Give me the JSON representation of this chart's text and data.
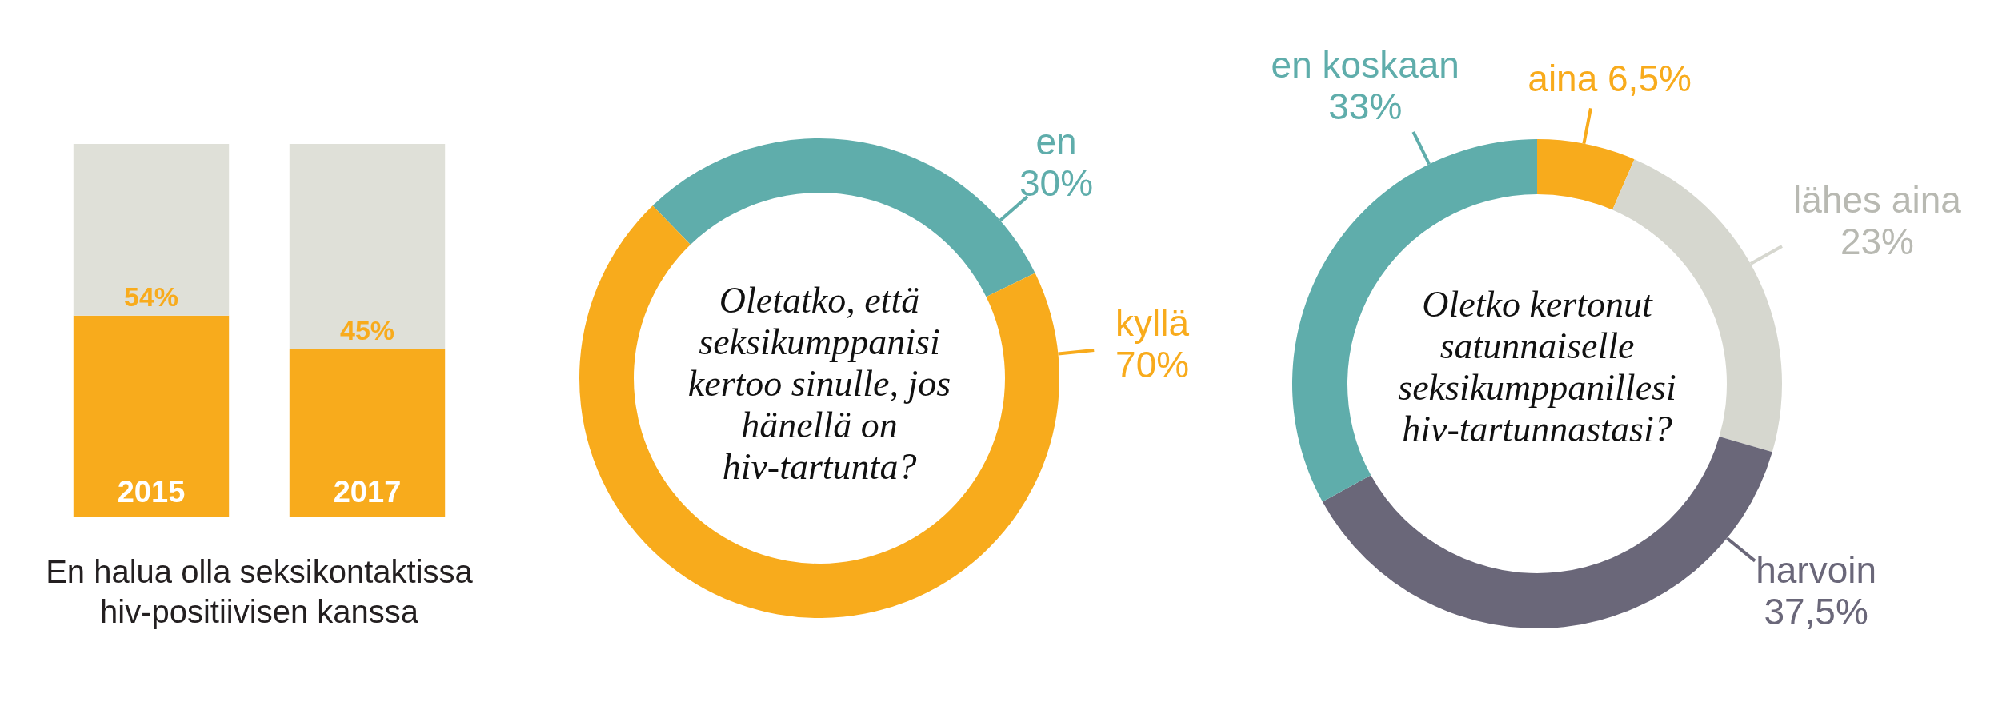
{
  "chart_data": [
    {
      "type": "bar",
      "stacked": true,
      "title": "En halua olla seksikontaktissa hiv-positiivisen kanssa",
      "categories": [
        "2015",
        "2017"
      ],
      "series": [
        {
          "color": "#f8ab1c",
          "values": [
            54,
            45
          ],
          "value_labels": [
            "54%",
            "45%"
          ]
        },
        {
          "color": "#dfe0d8",
          "values": [
            46,
            55
          ]
        }
      ]
    },
    {
      "type": "donut",
      "title": "Oletatko, että seksikumppanisi kertoo sinulle, jos hänellä on hiv-tartunta?",
      "categories": [
        "en",
        "kyllä"
      ],
      "values": [
        30,
        70
      ],
      "colors": [
        "#5fadab",
        "#f8ab1c"
      ],
      "value_labels": [
        "30%",
        "70%"
      ]
    },
    {
      "type": "donut",
      "title": "Oletko kertonut satunnaiselle seksikumppanillesi hiv-tartunnastasi?",
      "categories": [
        "aina",
        "lähes aina",
        "harvoin",
        "en koskaan"
      ],
      "values": [
        6.5,
        23,
        37.5,
        33
      ],
      "colors": [
        "#f8ab1c",
        "#d6d7cf",
        "#6a6779",
        "#5fadab"
      ],
      "value_labels": [
        "6,5%",
        "23%",
        "37,5%",
        "33%"
      ]
    }
  ]
}
